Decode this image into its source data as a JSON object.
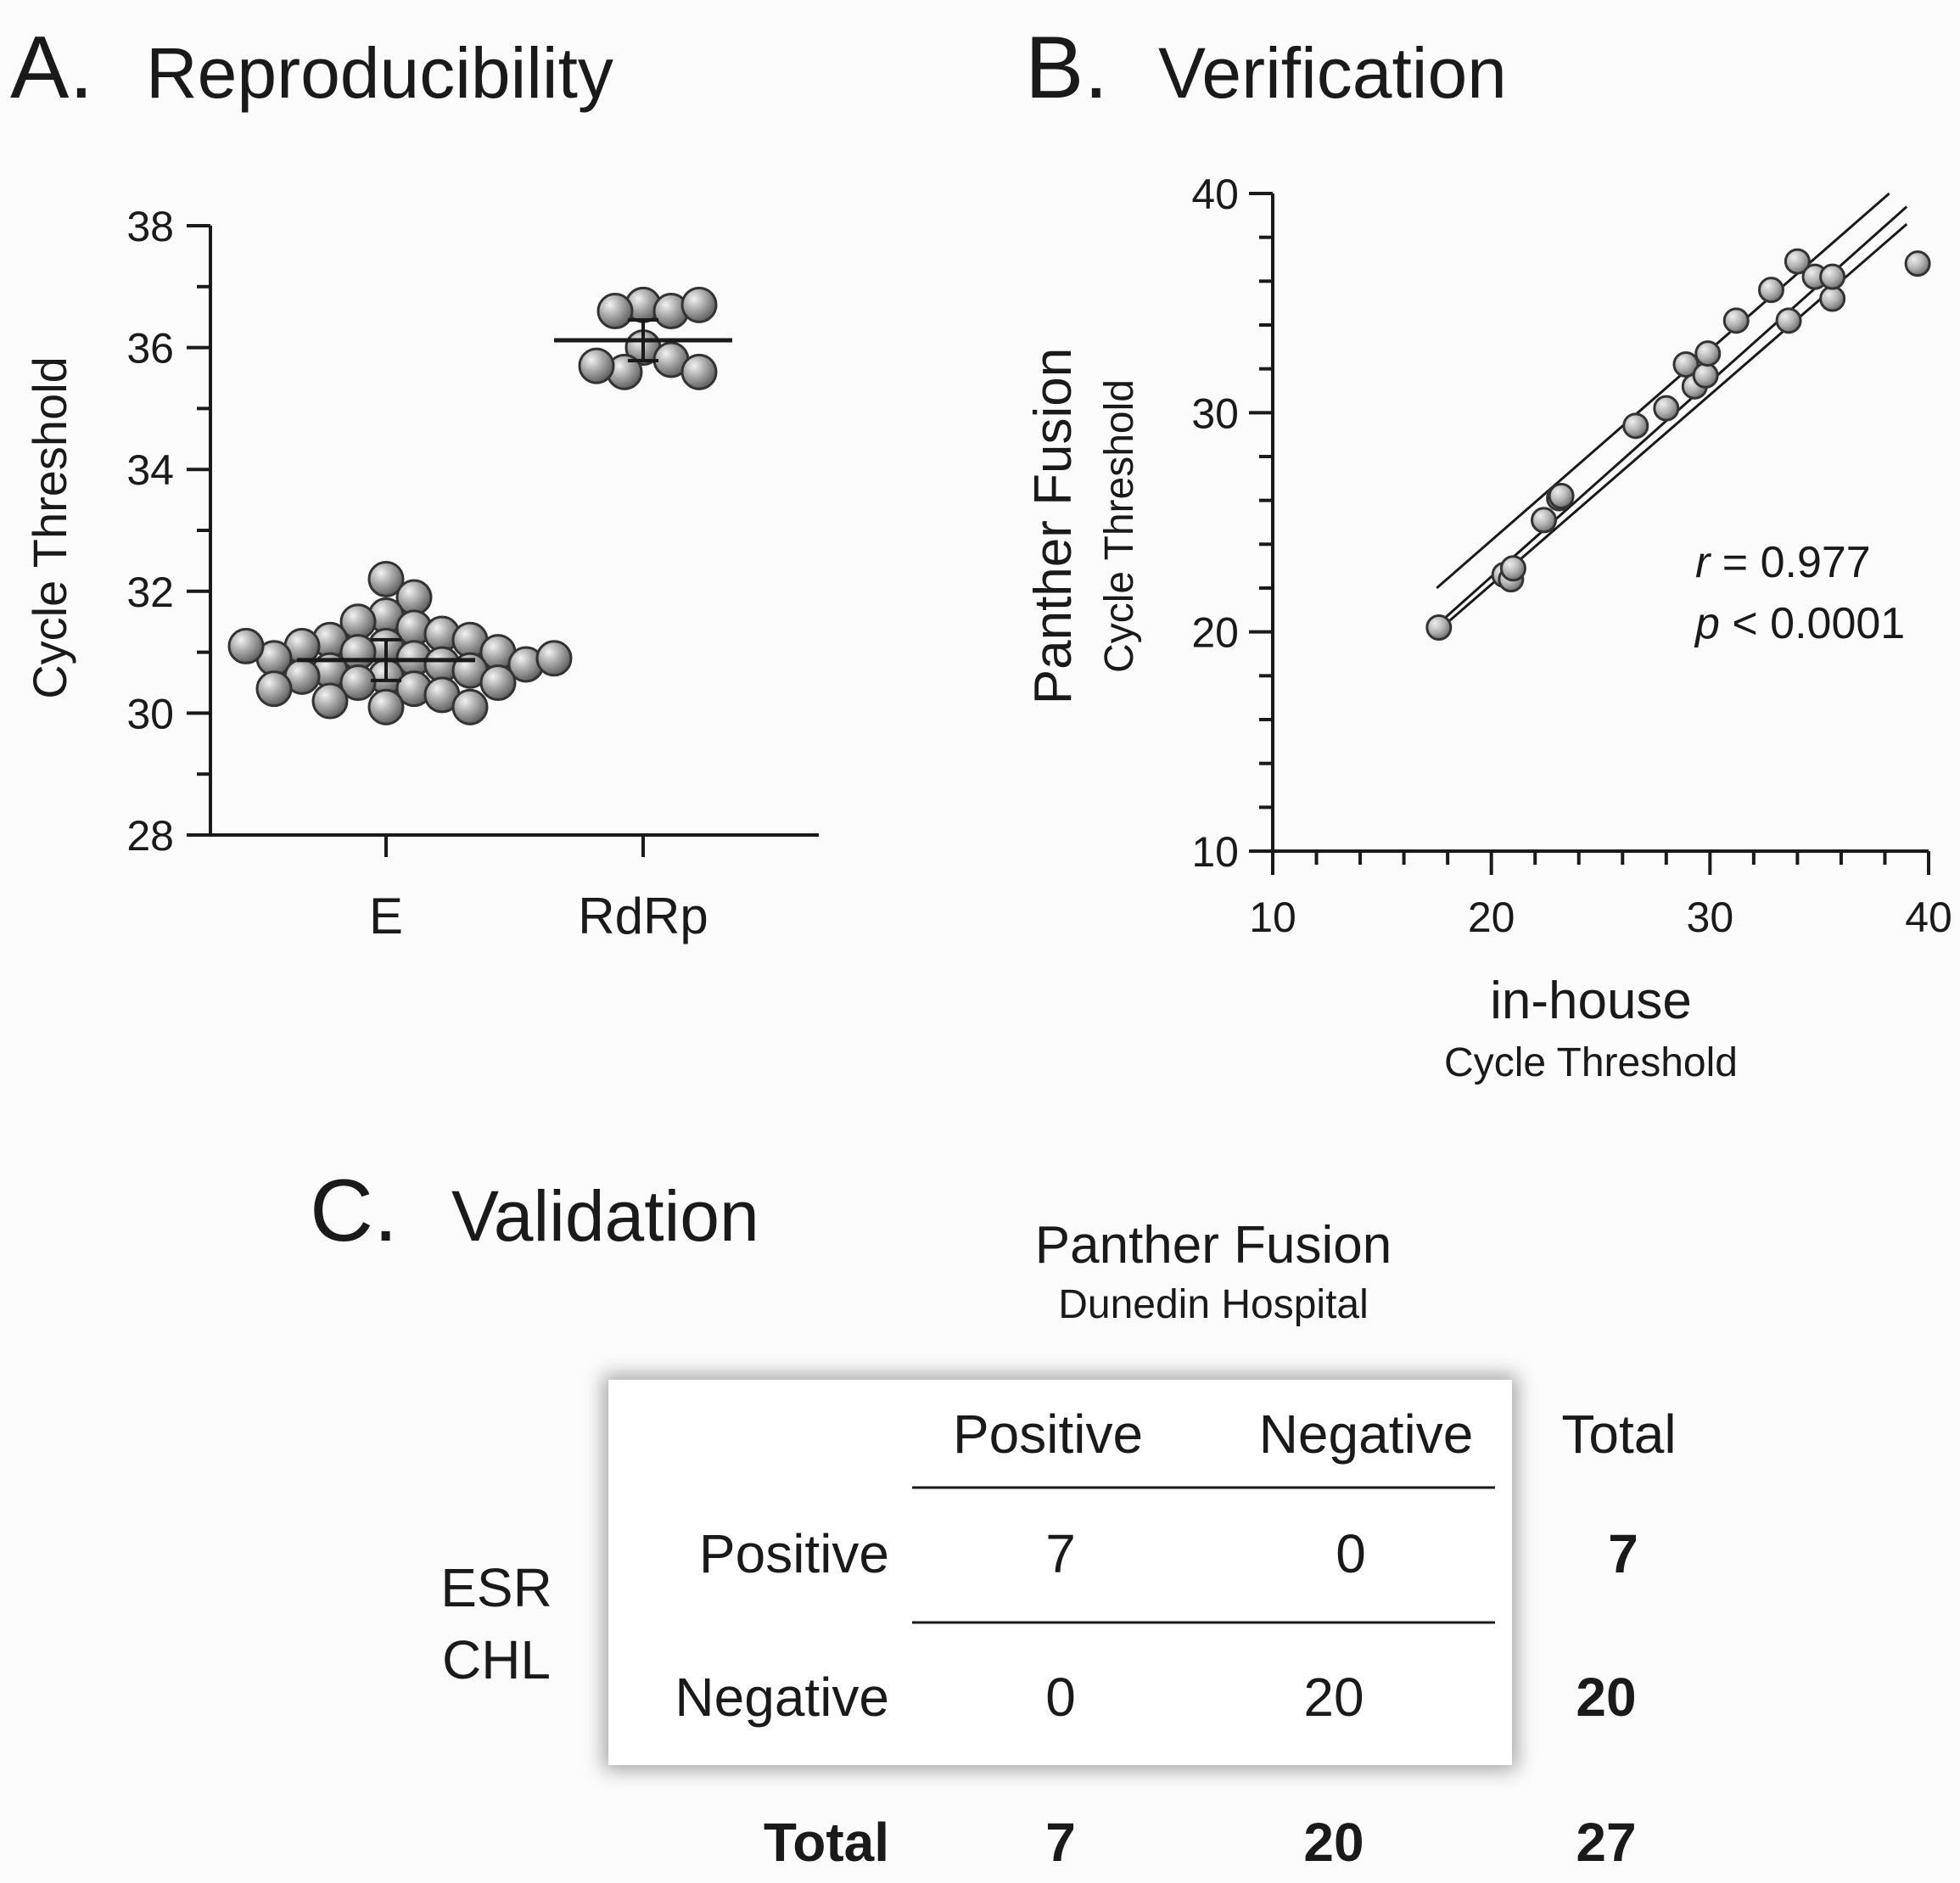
{
  "panelA": {
    "letter": "A.",
    "title": "Reproducibility",
    "chart_data": {
      "type": "scatter",
      "ylabel": "Cycle Threshold",
      "ylim": [
        28,
        38
      ],
      "yticks": [
        "28",
        "30",
        "32",
        "34",
        "36",
        "38"
      ],
      "categories": [
        "E",
        "RdRp"
      ],
      "series": [
        {
          "name": "E",
          "mean": 30.87,
          "values": [
            32.2,
            31.9,
            31.6,
            31.5,
            31.4,
            31.3,
            31.2,
            31.2,
            31.1,
            31.1,
            31.0,
            31.0,
            30.9,
            30.9,
            30.8,
            30.8,
            30.7,
            30.7,
            30.6,
            30.6,
            30.5,
            30.5,
            30.4,
            30.4,
            30.3,
            30.2,
            30.1,
            30.1,
            31.1,
            30.9
          ]
        },
        {
          "name": "RdRp",
          "mean": 36.12,
          "values": [
            36.7,
            36.6,
            36.6,
            36.7,
            36.0,
            35.8,
            35.6,
            35.7,
            35.6
          ]
        }
      ]
    }
  },
  "panelB": {
    "letter": "B.",
    "title": "Verification",
    "chart_data": {
      "type": "scatter",
      "xlabel": "in-house",
      "xlabel_sub": "Cycle Threshold",
      "ylabel": "Panther Fusion",
      "ylabel_sub": "Cycle Threshold",
      "xlim": [
        10,
        40
      ],
      "ylim": [
        10,
        40
      ],
      "xticks": [
        "10",
        "20",
        "30",
        "40"
      ],
      "yticks": [
        "10",
        "20",
        "30",
        "40"
      ],
      "points": [
        [
          17.6,
          20.2
        ],
        [
          20.6,
          22.6
        ],
        [
          20.9,
          22.4
        ],
        [
          21.0,
          22.9
        ],
        [
          22.4,
          25.1
        ],
        [
          23.1,
          26.1
        ],
        [
          23.2,
          26.2
        ],
        [
          26.6,
          29.4
        ],
        [
          28.0,
          30.2
        ],
        [
          28.9,
          32.2
        ],
        [
          29.3,
          31.2
        ],
        [
          29.8,
          31.7
        ],
        [
          29.9,
          32.7
        ],
        [
          31.2,
          34.2
        ],
        [
          32.8,
          35.6
        ],
        [
          33.6,
          34.2
        ],
        [
          34.0,
          36.9
        ],
        [
          34.8,
          36.2
        ],
        [
          35.6,
          35.2
        ],
        [
          35.6,
          36.2
        ],
        [
          39.5,
          36.8
        ]
      ],
      "fit": {
        "x": [
          17.5,
          39.0
        ],
        "y": [
          20.3,
          39.4
        ]
      },
      "ci_upper": {
        "x": [
          17.5,
          38.2
        ],
        "y": [
          22.0,
          40.0
        ]
      },
      "ci_lower": {
        "x": [
          17.5,
          39.0
        ],
        "y": [
          20.0,
          38.6
        ]
      },
      "r_label": "r",
      "r_text": " = 0.977",
      "p_label": "p",
      "p_text": " < 0.0001"
    }
  },
  "panelC": {
    "letter": "C.",
    "title": "Validation",
    "header": "Panther Fusion",
    "subheader": "Dunedin Hospital",
    "row_group": [
      "ESR",
      "CHL"
    ],
    "chart_data": {
      "type": "table",
      "columns": [
        "Positive",
        "Negative",
        "Total"
      ],
      "rows": [
        {
          "label": "Positive",
          "values": [
            "7",
            "0"
          ],
          "total": "7"
        },
        {
          "label": "Negative",
          "values": [
            "0",
            "20"
          ],
          "total": "20"
        }
      ],
      "total_row": {
        "label": "Total",
        "values": [
          "7",
          "20"
        ],
        "total": "27"
      }
    }
  }
}
